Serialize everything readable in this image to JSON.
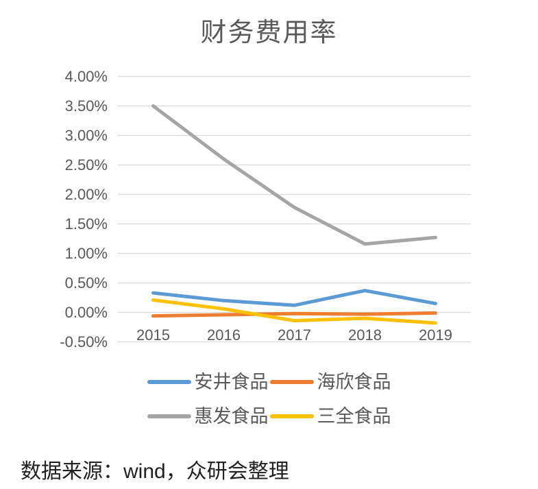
{
  "title": "财务费用率",
  "source_note": "数据来源：wind，众研会整理",
  "chart_data": {
    "type": "line",
    "title": "财务费用率",
    "categories": [
      "2015",
      "2016",
      "2017",
      "2018",
      "2019"
    ],
    "y_tick_labels": [
      "4.00%",
      "3.50%",
      "3.00%",
      "2.50%",
      "2.00%",
      "1.50%",
      "1.00%",
      "0.50%",
      "0.00%",
      "-0.50%"
    ],
    "ylim": [
      -0.5,
      4.0
    ],
    "unit": "percent",
    "grid": true,
    "legend_position": "bottom",
    "colors": {
      "text_gray": "#595959",
      "gridline": "#d9d9d9",
      "source_text": "#212121"
    },
    "series": [
      {
        "name": "安井食品",
        "color": "#5B9BD5",
        "values": [
          0.33,
          0.2,
          0.12,
          0.37,
          0.15
        ]
      },
      {
        "name": "海欣食品",
        "color": "#ED7D31",
        "values": [
          -0.06,
          -0.04,
          -0.02,
          -0.03,
          -0.01
        ]
      },
      {
        "name": "惠发食品",
        "color": "#A5A5A5",
        "values": [
          3.5,
          2.6,
          1.78,
          1.16,
          1.27
        ]
      },
      {
        "name": "三全食品",
        "color": "#FFC000",
        "values": [
          0.21,
          0.06,
          -0.14,
          -0.1,
          -0.18
        ]
      }
    ]
  }
}
